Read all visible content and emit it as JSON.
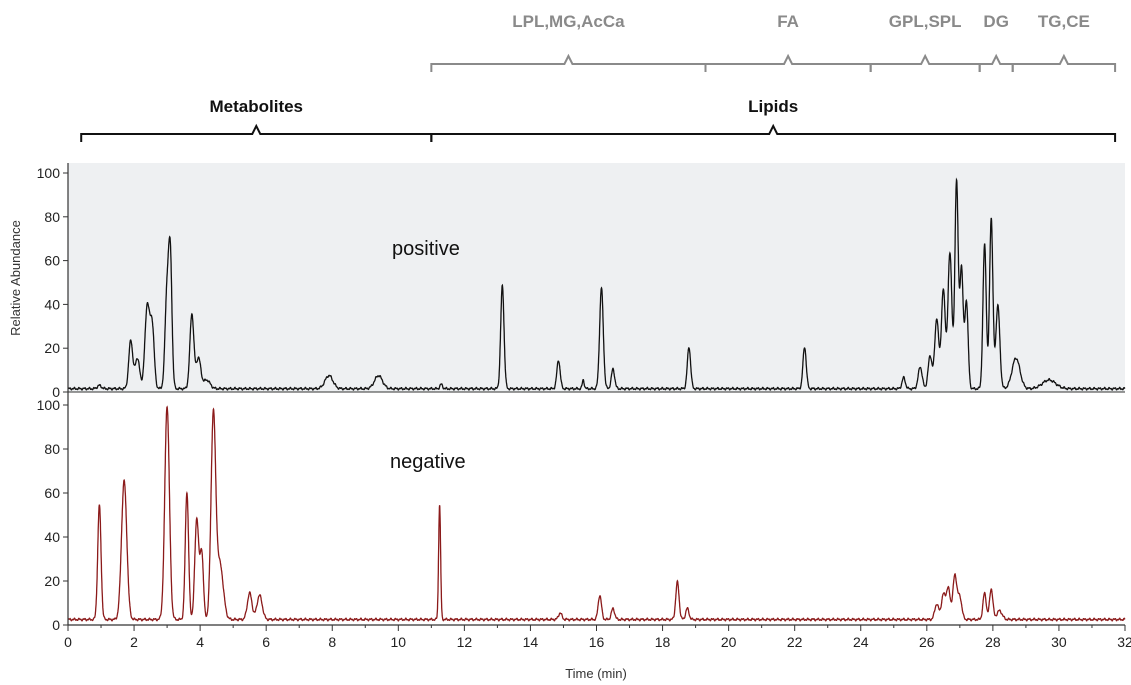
{
  "chart_data": {
    "type": "line",
    "xlabel": "Time (min)",
    "ylabel": "Relative Abundance",
    "xlim": [
      0,
      32
    ],
    "ylim": [
      0,
      100
    ],
    "x_ticks": [
      0,
      2,
      4,
      6,
      8,
      10,
      12,
      14,
      16,
      18,
      20,
      22,
      24,
      26,
      28,
      30,
      32
    ],
    "y_ticks": [
      0,
      20,
      40,
      60,
      80,
      100
    ],
    "panel_labels": {
      "positive": "positive",
      "negative": "negative"
    },
    "lipid_groups": [
      {
        "label": "LPL,MG,AcCa",
        "from": 11.0,
        "to": 19.3
      },
      {
        "label": "FA",
        "from": 19.3,
        "to": 24.3
      },
      {
        "label": "GPL,SPL",
        "from": 24.3,
        "to": 27.6
      },
      {
        "label": "DG",
        "from": 27.6,
        "to": 28.6
      },
      {
        "label": "TG,CE",
        "from": 28.6,
        "to": 31.7
      }
    ],
    "classes": [
      {
        "label": "Metabolites",
        "from": 0.4,
        "to": 11.0
      },
      {
        "label": "Lipids",
        "from": 11.0,
        "to": 31.7
      }
    ],
    "colors": {
      "positive": "#111111",
      "negative": "#8b1a1a",
      "top_panel_bg": "#eef0f2",
      "gray_brace": "#8a8a8a"
    },
    "series": [
      {
        "name": "positive",
        "baseline": 1.5,
        "peaks": [
          [
            0.95,
            1.5,
            0.06
          ],
          [
            1.9,
            22,
            0.06
          ],
          [
            2.1,
            14,
            0.07
          ],
          [
            2.4,
            38,
            0.07
          ],
          [
            2.55,
            28,
            0.06
          ],
          [
            3.0,
            45,
            0.06
          ],
          [
            3.1,
            55,
            0.05
          ],
          [
            3.75,
            34,
            0.06
          ],
          [
            3.95,
            14,
            0.07
          ],
          [
            4.2,
            4,
            0.1
          ],
          [
            7.9,
            6,
            0.12
          ],
          [
            9.4,
            6,
            0.12
          ],
          [
            11.3,
            2,
            0.04
          ],
          [
            13.15,
            47,
            0.05
          ],
          [
            14.85,
            13,
            0.05
          ],
          [
            15.6,
            4,
            0.03
          ],
          [
            16.15,
            46,
            0.055
          ],
          [
            16.5,
            9,
            0.05
          ],
          [
            18.8,
            19,
            0.05
          ],
          [
            22.3,
            19,
            0.05
          ],
          [
            25.3,
            5,
            0.05
          ],
          [
            25.8,
            10,
            0.06
          ],
          [
            26.1,
            15,
            0.06
          ],
          [
            26.3,
            32,
            0.06
          ],
          [
            26.5,
            45,
            0.06
          ],
          [
            26.7,
            62,
            0.06
          ],
          [
            26.9,
            95,
            0.05
          ],
          [
            27.05,
            55,
            0.05
          ],
          [
            27.2,
            40,
            0.05
          ],
          [
            27.75,
            66,
            0.05
          ],
          [
            27.95,
            78,
            0.05
          ],
          [
            28.15,
            38,
            0.06
          ],
          [
            28.7,
            14,
            0.12
          ],
          [
            29.7,
            4,
            0.2
          ]
        ]
      },
      {
        "name": "negative",
        "baseline": 2.5,
        "peaks": [
          [
            0.95,
            52,
            0.05
          ],
          [
            1.7,
            63,
            0.08
          ],
          [
            3.0,
            97,
            0.07
          ],
          [
            3.6,
            58,
            0.05
          ],
          [
            3.9,
            46,
            0.06
          ],
          [
            4.05,
            30,
            0.05
          ],
          [
            4.4,
            92,
            0.07
          ],
          [
            4.6,
            25,
            0.1
          ],
          [
            5.5,
            12,
            0.07
          ],
          [
            5.8,
            11,
            0.08
          ],
          [
            11.25,
            52,
            0.03
          ],
          [
            14.9,
            3,
            0.05
          ],
          [
            16.1,
            11,
            0.05
          ],
          [
            16.5,
            5,
            0.05
          ],
          [
            18.45,
            17,
            0.05
          ],
          [
            18.75,
            5,
            0.05
          ],
          [
            26.3,
            7,
            0.06
          ],
          [
            26.5,
            11,
            0.06
          ],
          [
            26.65,
            14,
            0.06
          ],
          [
            26.85,
            20,
            0.06
          ],
          [
            27.0,
            10,
            0.06
          ],
          [
            27.75,
            12,
            0.05
          ],
          [
            27.95,
            14,
            0.05
          ],
          [
            28.2,
            4,
            0.08
          ]
        ]
      }
    ]
  }
}
